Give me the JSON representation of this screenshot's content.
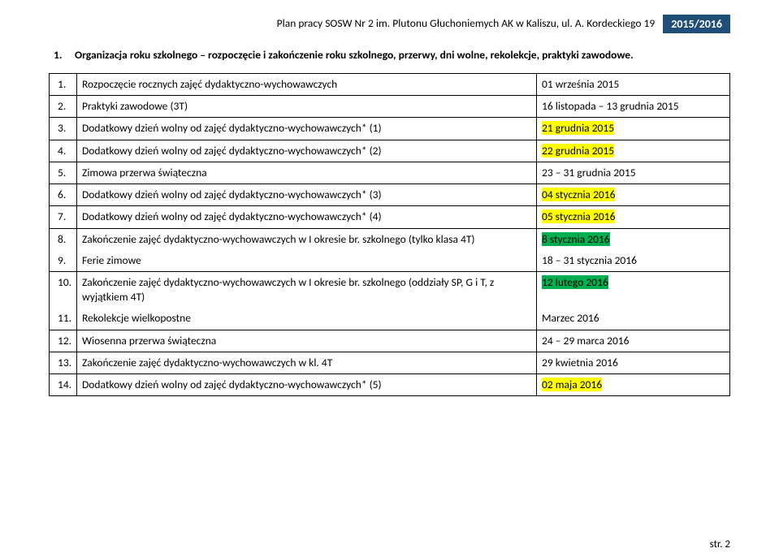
{
  "header": {
    "title": "Plan pracy SOSW Nr 2 im. Plutonu Głuchoniemych AK w Kaliszu, ul. A. Kordeckiego 19",
    "year": "2015/2016"
  },
  "section": {
    "num": "1.",
    "text": "Organizacja roku szkolnego – rozpoczęcie i zakończenie roku szkolnego, przerwy, dni wolne, rekolekcje, praktyki zawodowe."
  },
  "rows": [
    {
      "n": "1.",
      "desc": "Rozpoczęcie rocznych zajęć dydaktyczno-wychowawczych",
      "date": "01 września 2015",
      "hl": null
    },
    {
      "n": "2.",
      "desc": "Praktyki zawodowe (3T)",
      "date": "16 listopada – 13 grudnia 2015",
      "hl": null
    },
    {
      "n": "3.",
      "desc": "Dodatkowy dzień wolny od zajęć dydaktyczno-wychowawczych* (1)",
      "date": "21 grudnia 2015",
      "hl": "yellow"
    },
    {
      "n": "4.",
      "desc": "Dodatkowy dzień wolny od zajęć dydaktyczno-wychowawczych* (2)",
      "date": "22 grudnia 2015",
      "hl": "yellow"
    },
    {
      "n": "5.",
      "desc": "Zimowa przerwa świąteczna",
      "date": "23 – 31 grudnia 2015",
      "hl": null
    },
    {
      "n": "6.",
      "desc": "Dodatkowy dzień wolny od zajęć dydaktyczno-wychowawczych* (3)",
      "date": "04 stycznia 2016",
      "hl": "yellow"
    },
    {
      "n": "7.",
      "desc": "Dodatkowy dzień wolny od zajęć dydaktyczno-wychowawczych* (4)",
      "date": "05 stycznia 2016",
      "hl": "yellow"
    },
    {
      "n": "8.",
      "desc": "Zakończenie zajęć dydaktyczno-wychowawczych w I okresie br. szkolnego (tylko klasa 4T)",
      "date": "8 stycznia 2016",
      "hl": "green",
      "group_top": true
    },
    {
      "n": "9.",
      "desc": "Ferie zimowe",
      "date": "18 – 31 stycznia 2016",
      "hl": null,
      "group_bottom": true
    },
    {
      "n": "10.",
      "desc": "Zakończenie zajęć dydaktyczno-wychowawczych w I okresie br. szkolnego (oddziały SP, G i T, z wyjątkiem 4T)",
      "date": "12 lutego 2016",
      "hl": "green",
      "group_top": true
    },
    {
      "n": "11.",
      "desc": "Rekolekcje wielkopostne",
      "date": "Marzec 2016",
      "hl": null,
      "group_bottom": true
    },
    {
      "n": "12.",
      "desc": "Wiosenna przerwa świąteczna",
      "date": "24 – 29 marca 2016",
      "hl": null
    },
    {
      "n": "13.",
      "desc": "Zakończenie zajęć dydaktyczno-wychowawczych w kl. 4T",
      "date": "29 kwietnia 2016",
      "hl": null
    },
    {
      "n": "14.",
      "desc": "Dodatkowy dzień wolny od zajęć dydaktyczno-wychowawczych* (5)",
      "date": "02 maja 2016",
      "hl": "yellow"
    }
  ],
  "footer": "str. 2"
}
